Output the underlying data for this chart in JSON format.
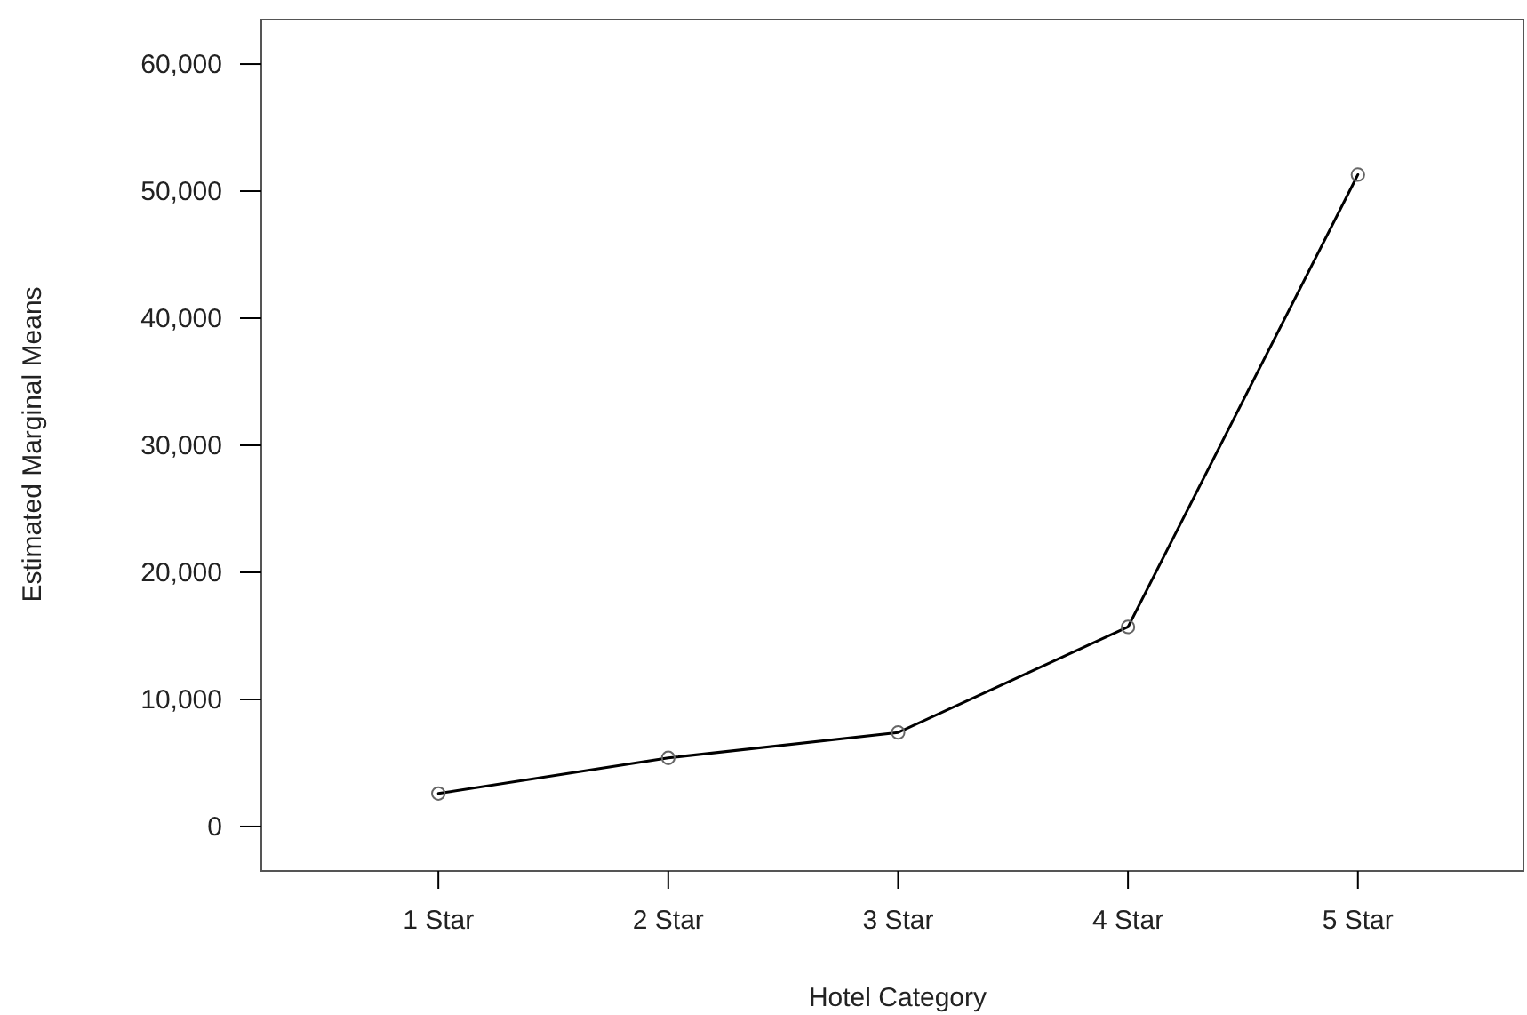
{
  "chart_data": {
    "type": "line",
    "xlabel": "Hotel Category",
    "ylabel": "Estimated Marginal Means",
    "categories": [
      "1 Star",
      "2 Star",
      "3 Star",
      "4 Star",
      "5 Star"
    ],
    "series": [
      {
        "color": "#000000",
        "values": [
          2600,
          5400,
          7400,
          15700,
          51300
        ]
      }
    ],
    "ylim": [
      -3500,
      63500
    ],
    "yticks": [
      {
        "value": 0,
        "label": "0"
      },
      {
        "value": 10000,
        "label": "10,000"
      },
      {
        "value": 20000,
        "label": "20,000"
      },
      {
        "value": 30000,
        "label": "30,000"
      },
      {
        "value": 40000,
        "label": "40,000"
      },
      {
        "value": 50000,
        "label": "50,000"
      },
      {
        "value": 60000,
        "label": "60,000"
      }
    ],
    "marker": "circle",
    "line_style": "solid"
  }
}
